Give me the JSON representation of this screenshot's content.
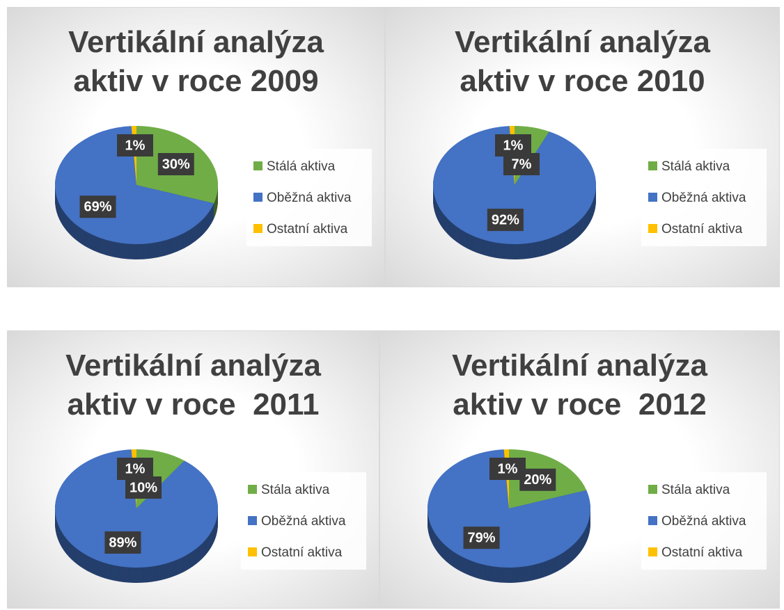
{
  "chart_data": [
    {
      "type": "pie",
      "title": "Vertikální analýza aktiv v roce 2009",
      "categories": [
        "Stálá aktiva",
        "Oběžná aktiva",
        "Ostatní aktiva"
      ],
      "values": [
        30,
        69,
        1
      ],
      "value_labels": [
        "30%",
        "69%",
        "1%"
      ],
      "colors": [
        "#70ad47",
        "#4472c4",
        "#ffc000"
      ],
      "legend": "right"
    },
    {
      "type": "pie",
      "title": "Vertikální analýza aktiv v roce 2010",
      "categories": [
        "Stálá aktiva",
        "Oběžná aktiva",
        "Ostatní aktiva"
      ],
      "values": [
        7,
        92,
        1
      ],
      "value_labels": [
        "7%",
        "92%",
        "1%"
      ],
      "colors": [
        "#70ad47",
        "#4472c4",
        "#ffc000"
      ],
      "legend": "right"
    },
    {
      "type": "pie",
      "title": "Vertikální analýza aktiv v roce  2011",
      "categories": [
        "Stála aktiva",
        "Oběžná aktiva",
        "Ostatní aktiva"
      ],
      "values": [
        10,
        89,
        1
      ],
      "value_labels": [
        "10%",
        "89%",
        "1%"
      ],
      "colors": [
        "#70ad47",
        "#4472c4",
        "#ffc000"
      ],
      "legend": "right"
    },
    {
      "type": "pie",
      "title": "Vertikální analýza aktiv v roce  2012",
      "categories": [
        "Stála aktiva",
        "Oběžná aktiva",
        "Ostatní aktiva"
      ],
      "values": [
        20,
        79,
        1
      ],
      "value_labels": [
        "20%",
        "79%",
        "1%"
      ],
      "colors": [
        "#70ad47",
        "#4472c4",
        "#ffc000"
      ],
      "legend": "right"
    }
  ]
}
